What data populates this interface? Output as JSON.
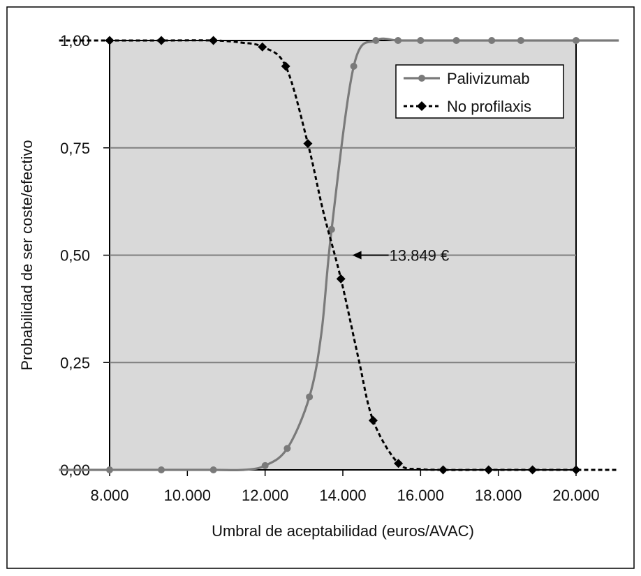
{
  "chart_data": {
    "type": "line",
    "title": "",
    "xlabel": "Umbral de aceptabilidad (euros/AVAC)",
    "ylabel": "Probabilidad de ser coste/efectivo",
    "xlim": [
      8000,
      20000
    ],
    "ylim": [
      0,
      1
    ],
    "x_tick_labels": [
      "8.000",
      "10.000",
      "12.000",
      "14.000",
      "16.000",
      "18.000",
      "20.000"
    ],
    "y_tick_labels": [
      "0,00",
      "0,25",
      "0,50",
      "0,75",
      "1,00"
    ],
    "grid": "horizontal",
    "legend_position": "top-right",
    "series": [
      {
        "name": "Palivizumab",
        "marker": "circle",
        "line": "solid",
        "color": "#7a7a7a",
        "x": [
          8000,
          9330,
          10670,
          12000,
          12570,
          13140,
          13710,
          14280,
          14850,
          15420,
          16000,
          16920,
          17830,
          18580,
          20000
        ],
        "y": [
          0,
          0,
          0,
          0.01,
          0.05,
          0.17,
          0.56,
          0.94,
          1.0,
          1.0,
          1.0,
          1.0,
          1.0,
          1.0,
          1.0
        ],
        "curve": [
          [
            6700,
            0
          ],
          [
            8000,
            0
          ],
          [
            9330,
            0
          ],
          [
            10670,
            0
          ],
          [
            11450,
            0
          ],
          [
            12000,
            0.01
          ],
          [
            12570,
            0.05
          ],
          [
            13140,
            0.17
          ],
          [
            13450,
            0.32
          ],
          [
            13710,
            0.56
          ],
          [
            14280,
            0.94
          ],
          [
            14850,
            1.0
          ],
          [
            15420,
            1.0
          ],
          [
            16000,
            1.0
          ],
          [
            17000,
            1.0
          ],
          [
            18500,
            1.0
          ],
          [
            20000,
            1.0
          ],
          [
            21100,
            1.0
          ]
        ]
      },
      {
        "name": "No profilaxis",
        "marker": "diamond",
        "line": "dashed",
        "color": "#000000",
        "x": [
          8000,
          9330,
          10670,
          11930,
          12530,
          13100,
          13950,
          14780,
          15430,
          16580,
          17750,
          18880,
          20000
        ],
        "y": [
          1.0,
          1.0,
          1.0,
          0.985,
          0.94,
          0.76,
          0.445,
          0.115,
          0.015,
          0.0,
          0.0,
          0.0,
          0.0
        ],
        "curve": [
          [
            6700,
            1.0
          ],
          [
            8000,
            1.0
          ],
          [
            9330,
            1.0
          ],
          [
            10670,
            1.0
          ],
          [
            11400,
            0.995
          ],
          [
            11930,
            0.985
          ],
          [
            12530,
            0.94
          ],
          [
            13100,
            0.76
          ],
          [
            13500,
            0.6
          ],
          [
            13950,
            0.445
          ],
          [
            14400,
            0.26
          ],
          [
            14780,
            0.115
          ],
          [
            15430,
            0.015
          ],
          [
            16000,
            0.002
          ],
          [
            16580,
            0.0
          ],
          [
            17750,
            0.0
          ],
          [
            18880,
            0.0
          ],
          [
            20000,
            0.0
          ],
          [
            21100,
            0.0
          ]
        ]
      }
    ],
    "annotations": [
      {
        "text": "13.849 €",
        "x": 13849,
        "y": 0.5,
        "type": "arrow-left"
      }
    ]
  }
}
